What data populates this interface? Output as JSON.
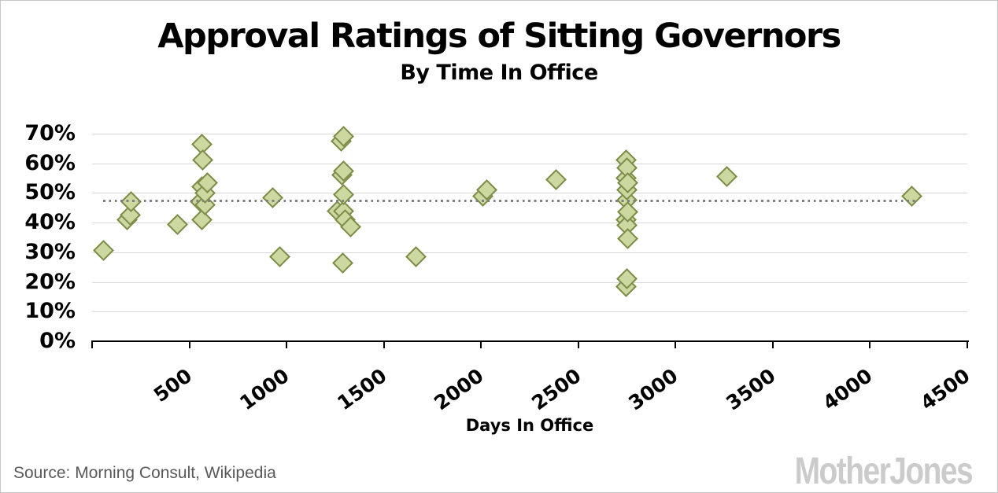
{
  "header": {
    "title": "Approval Ratings of Sitting Governors",
    "subtitle": "By Time In Office"
  },
  "footer": {
    "source": "Source: Morning Consult, Wikipedia",
    "logo": "MotherJones"
  },
  "chart_data": {
    "type": "scatter",
    "title": "Approval Ratings of Sitting Governors",
    "subtitle": "By Time In Office",
    "xlabel": "Days In Office",
    "ylabel": "",
    "xlim": [
      0,
      4500
    ],
    "ylim": [
      0,
      70
    ],
    "x_ticks": [
      0,
      500,
      1000,
      1500,
      2000,
      2500,
      3000,
      3500,
      4000,
      4500
    ],
    "y_ticks": [
      0,
      10,
      20,
      30,
      40,
      50,
      60,
      70
    ],
    "y_tick_suffix": "%",
    "grid": "horizontal",
    "legend": "none",
    "marker": "diamond",
    "points": [
      [
        60,
        30.5
      ],
      [
        180,
        41
      ],
      [
        195,
        42.5
      ],
      [
        200,
        47
      ],
      [
        440,
        39.5
      ],
      [
        555,
        47
      ],
      [
        565,
        41
      ],
      [
        565,
        52
      ],
      [
        565,
        66.5
      ],
      [
        570,
        61
      ],
      [
        580,
        46
      ],
      [
        580,
        50
      ],
      [
        595,
        53.5
      ],
      [
        930,
        48.5
      ],
      [
        965,
        28.5
      ],
      [
        1260,
        44
      ],
      [
        1280,
        67.5
      ],
      [
        1285,
        56
      ],
      [
        1290,
        26.5
      ],
      [
        1295,
        44
      ],
      [
        1295,
        49.5
      ],
      [
        1295,
        57.5
      ],
      [
        1295,
        69
      ],
      [
        1300,
        41
      ],
      [
        1330,
        38.5
      ],
      [
        1665,
        28.5
      ],
      [
        2010,
        49
      ],
      [
        2030,
        51
      ],
      [
        2385,
        54.5
      ],
      [
        2745,
        18.5
      ],
      [
        2745,
        41
      ],
      [
        2745,
        55
      ],
      [
        2745,
        61
      ],
      [
        2750,
        21
      ],
      [
        2750,
        39
      ],
      [
        2750,
        47.5
      ],
      [
        2750,
        51
      ],
      [
        2750,
        58.5
      ],
      [
        2755,
        34.5
      ],
      [
        2755,
        43.5
      ],
      [
        2755,
        53.5
      ],
      [
        3265,
        55.5
      ],
      [
        4215,
        49
      ]
    ],
    "trendline": {
      "style": "dotted",
      "y": 47.2,
      "x_start": 55,
      "x_end": 4235
    },
    "colors": {
      "marker_fill": "#cbd8a0",
      "marker_border": "#7c8c48",
      "trend": "#7f7f7f",
      "grid": "#d9d9d9",
      "axis": "#000000"
    }
  }
}
